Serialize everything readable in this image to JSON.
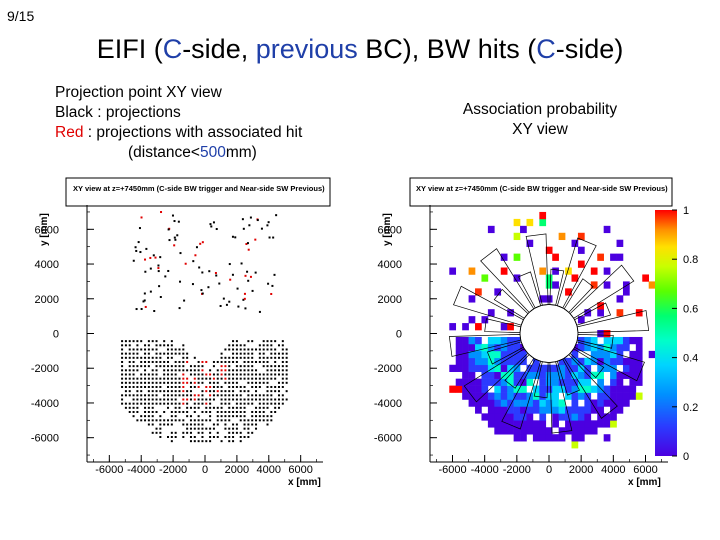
{
  "page_number": "9/15",
  "title": {
    "part1": "EIFI (",
    "c1": "C",
    "part2": "-side, ",
    "previous": "previous",
    "part3": " BC), BW hits (",
    "c2": "C",
    "part4": "-side)"
  },
  "left_description": {
    "line1": "Projection point XY view",
    "line2": "Black : projections",
    "red_word": "Red",
    "line3_rest": " : projections with associated hit",
    "line4_pre": "(distance<",
    "line4_val": "500",
    "line4_post": "mm)"
  },
  "right_description": {
    "line1": "Association probability",
    "line2": "XY view"
  },
  "colors": {
    "blue": "#1f3fa8",
    "red": "#e00000",
    "palette": [
      "#4b00e0",
      "#2b3bff",
      "#0090ff",
      "#00d4ff",
      "#00ffc8",
      "#00ff70",
      "#5aff00",
      "#c8ff00",
      "#ffe000",
      "#ff9000",
      "#ff3000",
      "#ff0000"
    ]
  },
  "chart_data": [
    {
      "type": "scatter",
      "title": "XY view at z=+7450mm (C-side BW trigger and Near-side SW Previous)",
      "xlabel": "x [mm]",
      "ylabel": "y [mm]",
      "xlim": [
        -7400,
        7400
      ],
      "ylim": [
        -7400,
        7400
      ],
      "x_ticks": [
        -6000,
        -4000,
        -2000,
        0,
        2000,
        4000,
        6000
      ],
      "y_ticks": [
        6000,
        4000,
        2000,
        0,
        -2000,
        -4000,
        -6000
      ],
      "series": [
        {
          "name": "projections",
          "color": "#000000"
        },
        {
          "name": "projections with associated hit",
          "color": "#e00000"
        }
      ]
    },
    {
      "type": "heatmap",
      "title": "XY view at z=+7450mm (C-side BW trigger and Near-side SW Previous)",
      "xlabel": "x [mm]",
      "ylabel": "y [mm]",
      "xlim": [
        -7400,
        7400
      ],
      "ylim": [
        -7400,
        7400
      ],
      "x_ticks": [
        -6000,
        -4000,
        -2000,
        0,
        2000,
        4000,
        6000
      ],
      "y_ticks": [
        6000,
        4000,
        2000,
        0,
        -2000,
        -4000,
        -6000
      ],
      "z_range": [
        0,
        1
      ],
      "colorbar_ticks": [
        1,
        0.8,
        0.6,
        0.4,
        0.2,
        0
      ],
      "colorbar_labels": [
        "1",
        "0.8",
        "0.6",
        "0.4",
        "0.2",
        "0"
      ]
    }
  ]
}
